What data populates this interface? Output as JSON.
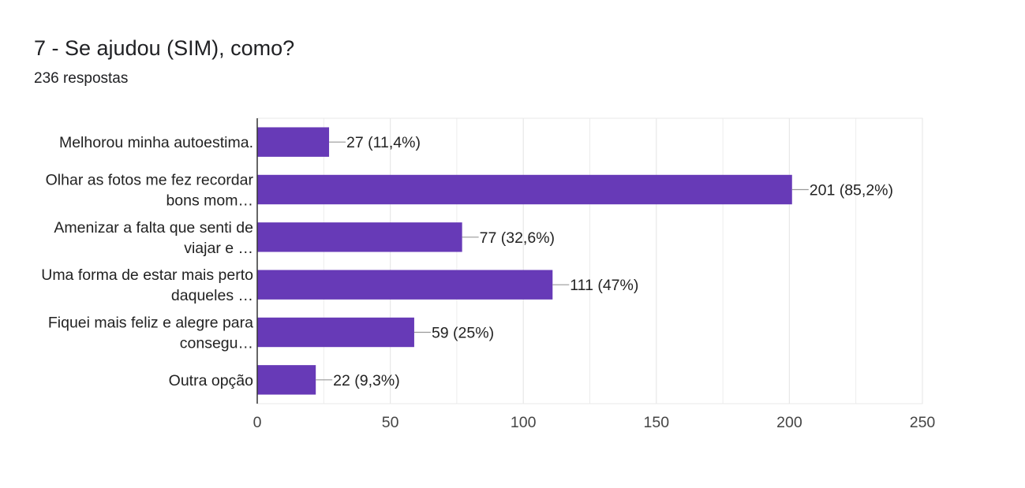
{
  "question": {
    "title": "7 - Se ajudou (SIM), como?",
    "responses": "236 respostas"
  },
  "colors": {
    "bar": "#673ab7",
    "grid": "#e8e8e8",
    "axis": "#333333",
    "leader": "#999999"
  },
  "chart_data": {
    "type": "bar",
    "orientation": "horizontal",
    "categories": [
      [
        "Melhorou minha autoestima."
      ],
      [
        "Olhar as fotos me fez recordar",
        "bons mom…"
      ],
      [
        "Amenizar a falta que senti de",
        "viajar e …"
      ],
      [
        "Uma forma de estar mais perto",
        "daqueles …"
      ],
      [
        "Fiquei mais feliz e alegre para",
        "consegu…"
      ],
      [
        "Outra opção"
      ]
    ],
    "values": [
      27,
      201,
      77,
      111,
      59,
      22
    ],
    "data_labels": [
      "27 (11,4%)",
      "201 (85,2%)",
      "77 (32,6%)",
      "111 (47%)",
      "59 (25%)",
      "22 (9,3%)"
    ],
    "xlim": [
      0,
      250
    ],
    "xticks": [
      "0",
      "50",
      "100",
      "150",
      "200",
      "250"
    ],
    "grid": true
  }
}
